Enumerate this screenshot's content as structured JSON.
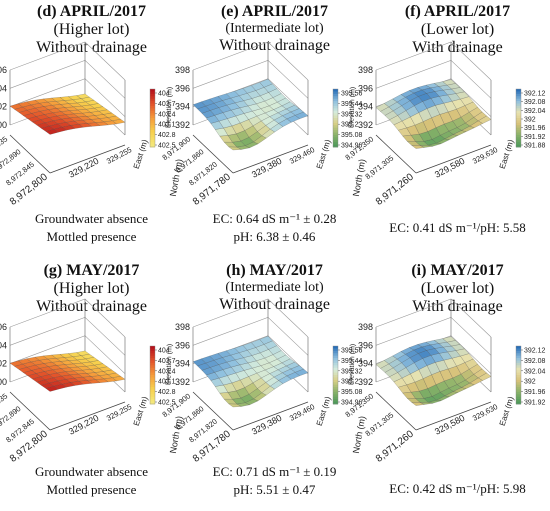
{
  "chart_data": [
    {
      "type": "surface3d",
      "id": "d",
      "title": "(d) APRIL/2017",
      "subtitle": "(Higher lot)",
      "drainage": "Without drainage",
      "zlabel": "Elevation (m)",
      "ylabel": "North (m)",
      "xlabel": "East (m)",
      "z_ticks": [
        "406",
        "404",
        "402",
        "400"
      ],
      "y_ticks": [
        "8,972,935",
        "8,972,890",
        "8,972,845",
        "8,972,800"
      ],
      "x_ticks": [
        "329,220",
        "329,255"
      ],
      "colorbar": [
        "404",
        "403.7",
        "403.4",
        "403.1",
        "402.8",
        "402.5"
      ],
      "palette": [
        "#b5121b",
        "#e2522a",
        "#f59a3a",
        "#f7d04d",
        "#f4e87c"
      ],
      "notes": [
        "Groundwater absence",
        "Mottled presence"
      ]
    },
    {
      "type": "surface3d",
      "id": "e",
      "title": "(e) APRIL/2017",
      "subtitle": "(Intermediate lot)",
      "drainage": "Without drainage",
      "zlabel": "Elevation (m)",
      "ylabel": "North (m)",
      "xlabel": "East (m)",
      "z_ticks": [
        "398",
        "396",
        "394",
        "392"
      ],
      "y_ticks": [
        "8,971,900",
        "8,971,860",
        "8,971,820",
        "8,971,780"
      ],
      "x_ticks": [
        "329,380",
        "329,460"
      ],
      "colorbar": [
        "395.56",
        "395.44",
        "395.32",
        "395.2",
        "395.08",
        "394.96"
      ],
      "palette": [
        "#2a6fb8",
        "#8fc0df",
        "#d6ecdc",
        "#d8cf86",
        "#8bb36a",
        "#4f9a5a"
      ],
      "notes": [
        "EC: 0.64 dS m⁻¹ ± 0.28",
        "pH: 6.38 ± 0.46"
      ]
    },
    {
      "type": "surface3d",
      "id": "f",
      "title": "(f) APRIL/2017",
      "subtitle": "(Lower lot)",
      "drainage": "With drainage",
      "zlabel": "Elevation (m)",
      "ylabel": "North (m)",
      "xlabel": "East (m)",
      "z_ticks": [
        "398",
        "396",
        "394",
        "392"
      ],
      "y_ticks": [
        "8,971,350",
        "8,971,305",
        "8,971,260"
      ],
      "x_ticks": [
        "329,580",
        "329,630"
      ],
      "colorbar": [
        "392.12",
        "392.08",
        "392.04",
        "392",
        "391.96",
        "391.92",
        "391.88"
      ],
      "palette": [
        "#2a6fb8",
        "#8fc0df",
        "#e8e3b0",
        "#d8c27a",
        "#8bb36a",
        "#4f9a5a"
      ],
      "notes": [
        "EC: 0.41 dS m⁻¹/pH: 5.58"
      ]
    },
    {
      "type": "surface3d",
      "id": "g",
      "title": "(g) MAY/2017",
      "subtitle": "(Higher lot)",
      "drainage": "Without drainage",
      "zlabel": "Elevation (m)",
      "ylabel": "North (m)",
      "xlabel": "East (m)",
      "z_ticks": [
        "406",
        "404",
        "402",
        "400"
      ],
      "y_ticks": [
        "8,972,935",
        "8,972,890",
        "8,972,845",
        "8,972,800"
      ],
      "x_ticks": [
        "329,220",
        "329,255"
      ],
      "colorbar": [
        "404",
        "403.7",
        "403.4",
        "403.1",
        "402.8",
        "402.5"
      ],
      "palette": [
        "#b5121b",
        "#e2522a",
        "#f59a3a",
        "#f7d04d",
        "#f4e87c"
      ],
      "notes": [
        "Groundwater absence",
        "Mottled presence"
      ]
    },
    {
      "type": "surface3d",
      "id": "h",
      "title": "(h) MAY/2017",
      "subtitle": "(Intermediate lot)",
      "drainage": "Without drainage",
      "zlabel": "Elevation (m)",
      "ylabel": "North (m)",
      "xlabel": "East (m)",
      "z_ticks": [
        "398",
        "396",
        "394",
        "392"
      ],
      "y_ticks": [
        "8,971,900",
        "8,971,860",
        "8,971,820",
        "8,971,780"
      ],
      "x_ticks": [
        "329,380",
        "329,460"
      ],
      "colorbar": [
        "395.56",
        "395.44",
        "395.32",
        "395.2",
        "395.08",
        "394.96"
      ],
      "palette": [
        "#2a6fb8",
        "#8fc0df",
        "#d6ecdc",
        "#d8cf86",
        "#8bb36a",
        "#4f9a5a"
      ],
      "notes": [
        "EC: 0.71 dS m⁻¹ ± 0.19",
        "pH: 5.51 ± 0.47"
      ]
    },
    {
      "type": "surface3d",
      "id": "i",
      "title": "(i) MAY/2017",
      "subtitle": "(Lower lot)",
      "drainage": "With drainage",
      "zlabel": "Elevation (m)",
      "ylabel": "North (m)",
      "xlabel": "East (m)",
      "z_ticks": [
        "398",
        "396",
        "394",
        "392"
      ],
      "y_ticks": [
        "8,971,350",
        "8,971,305",
        "8,971,260"
      ],
      "x_ticks": [
        "329,580",
        "329,630"
      ],
      "colorbar": [
        "392.12",
        "392.08",
        "392.04",
        "392",
        "391.96",
        "391.92"
      ],
      "palette": [
        "#2a6fb8",
        "#8fc0df",
        "#e8e3b0",
        "#d8c27a",
        "#8bb36a",
        "#4f9a5a"
      ],
      "notes": [
        "EC: 0.42 dS m⁻¹/pH: 5.98"
      ]
    }
  ]
}
